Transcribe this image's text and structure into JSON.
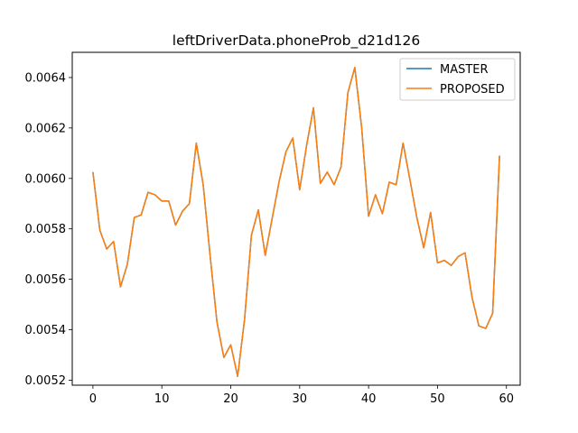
{
  "chart_data": {
    "type": "line",
    "title": "leftDriverData.phoneProb_d21d126",
    "xlabel": "",
    "ylabel": "",
    "xlim": [
      -3,
      62
    ],
    "ylim": [
      0.00518,
      0.0065
    ],
    "x_ticks": [
      0,
      10,
      20,
      30,
      40,
      50,
      60
    ],
    "x_tick_labels": [
      "0",
      "10",
      "20",
      "30",
      "40",
      "50",
      "60"
    ],
    "y_ticks": [
      0.0052,
      0.0054,
      0.0056,
      0.0058,
      0.006,
      0.0062,
      0.0064
    ],
    "y_tick_labels": [
      "0.0052",
      "0.0054",
      "0.0056",
      "0.0058",
      "0.0060",
      "0.0062",
      "0.0064"
    ],
    "grid": false,
    "legend_position": "top-right",
    "x": [
      0,
      1,
      2,
      3,
      4,
      5,
      6,
      7,
      8,
      9,
      10,
      11,
      12,
      13,
      14,
      15,
      16,
      17,
      18,
      19,
      20,
      21,
      22,
      23,
      24,
      25,
      26,
      27,
      28,
      29,
      30,
      31,
      32,
      33,
      34,
      35,
      36,
      37,
      38,
      39,
      40,
      41,
      42,
      43,
      44,
      45,
      46,
      47,
      48,
      49,
      50,
      51,
      52,
      53,
      54,
      55,
      56,
      57,
      58,
      59
    ],
    "series": [
      {
        "name": "MASTER",
        "color": "#1f77b4",
        "values": [
          0.006025,
          0.005795,
          0.00572,
          0.00575,
          0.00557,
          0.00566,
          0.005845,
          0.005855,
          0.005945,
          0.005935,
          0.00591,
          0.00591,
          0.005815,
          0.00587,
          0.0059,
          0.00614,
          0.005975,
          0.005695,
          0.00543,
          0.00529,
          0.00534,
          0.005215,
          0.00544,
          0.005775,
          0.005875,
          0.005695,
          0.00584,
          0.005985,
          0.006105,
          0.00616,
          0.005955,
          0.00613,
          0.00628,
          0.00598,
          0.006025,
          0.005975,
          0.006045,
          0.00634,
          0.00644,
          0.0062,
          0.00585,
          0.005935,
          0.00586,
          0.005985,
          0.005975,
          0.00614,
          0.005995,
          0.005845,
          0.005725,
          0.005865,
          0.005665,
          0.005675,
          0.005655,
          0.00569,
          0.005705,
          0.00553,
          0.005415,
          0.005405,
          0.005465,
          0.00609
        ]
      },
      {
        "name": "PROPOSED",
        "color": "#ff7f0e",
        "values": [
          0.006025,
          0.005795,
          0.00572,
          0.00575,
          0.00557,
          0.00566,
          0.005845,
          0.005855,
          0.005945,
          0.005935,
          0.00591,
          0.00591,
          0.005815,
          0.00587,
          0.0059,
          0.00614,
          0.005975,
          0.005695,
          0.00543,
          0.00529,
          0.00534,
          0.005215,
          0.00544,
          0.005775,
          0.005875,
          0.005695,
          0.00584,
          0.005985,
          0.006105,
          0.00616,
          0.005955,
          0.00613,
          0.00628,
          0.00598,
          0.006025,
          0.005975,
          0.006045,
          0.00634,
          0.00644,
          0.0062,
          0.00585,
          0.005935,
          0.00586,
          0.005985,
          0.005975,
          0.00614,
          0.005995,
          0.005845,
          0.005725,
          0.005865,
          0.005665,
          0.005675,
          0.005655,
          0.00569,
          0.005705,
          0.00553,
          0.005415,
          0.005405,
          0.005465,
          0.00609
        ]
      }
    ]
  }
}
